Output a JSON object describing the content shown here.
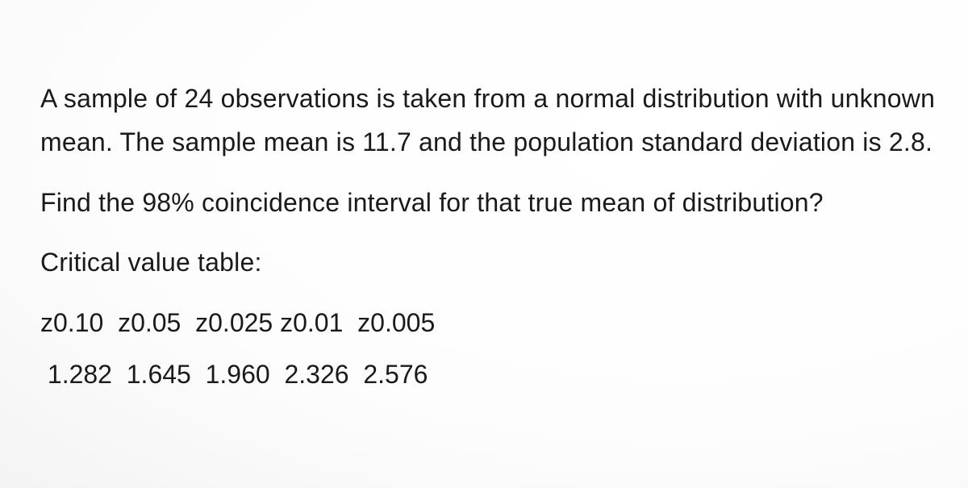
{
  "text": {
    "p1": "A sample of 24 observations is taken from a normal distribution with unknown mean. The sample mean is 11.7 and the population standard deviation is 2.8.",
    "p2": "Find the 98% coincidence interval for that true mean of distribution?",
    "p3": "Critical value table:"
  },
  "table": {
    "header_row": "z0.10  z0.05  z0.025 z0.01  z0.005",
    "value_row": " 1.282  1.645  1.960  2.326  2.576"
  },
  "style": {
    "text_color": "#1a1a1a",
    "background_color": "#ffffff",
    "font_size_pt": 24
  }
}
